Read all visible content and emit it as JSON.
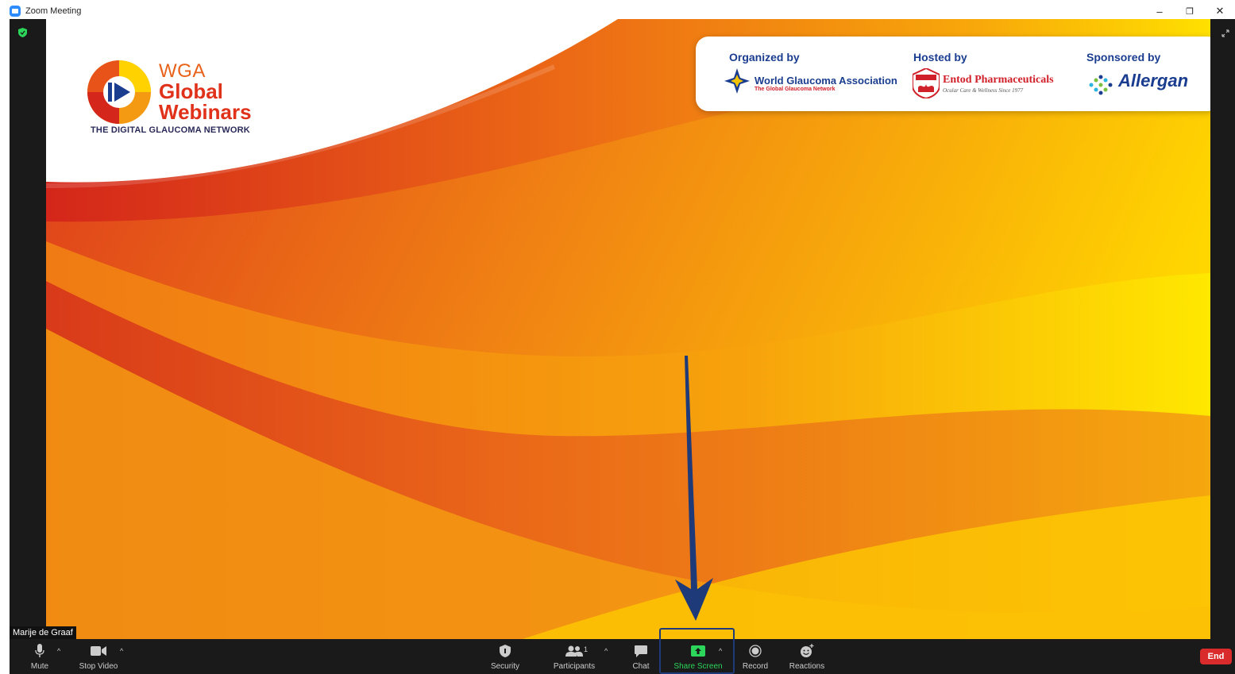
{
  "window": {
    "title": "Zoom Meeting",
    "controls": {
      "minimize": "–",
      "restore": "❐",
      "close": "✕"
    }
  },
  "slide": {
    "logo": {
      "line1": "WGA",
      "line2": "Global",
      "line3": "Webinars",
      "tagline": "THE DIGITAL GLAUCOMA NETWORK"
    },
    "sponsors": {
      "organized_header": "Organized by",
      "organizer_name": "World Glaucoma Association",
      "organizer_sub": "The Global Glaucoma Network",
      "hosted_header": "Hosted by",
      "host_name": "Entod Pharmaceuticals",
      "host_sub": "Ocular Care & Wellness Since 1977",
      "sponsored_header": "Sponsored by",
      "sponsor_name": "Allergan"
    },
    "colors": {
      "deep_red": "#d4261a",
      "orange": "#f0791a",
      "yellow": "#ffe600",
      "arrow": "#1e3a78"
    }
  },
  "participant": {
    "name": "Marije de Graaf"
  },
  "toolbar": {
    "mute": "Mute",
    "stop_video": "Stop Video",
    "security": "Security",
    "participants": "Participants",
    "participants_count": "1",
    "chat": "Chat",
    "share_screen": "Share Screen",
    "record": "Record",
    "reactions": "Reactions",
    "end": "End",
    "caret": "^"
  }
}
